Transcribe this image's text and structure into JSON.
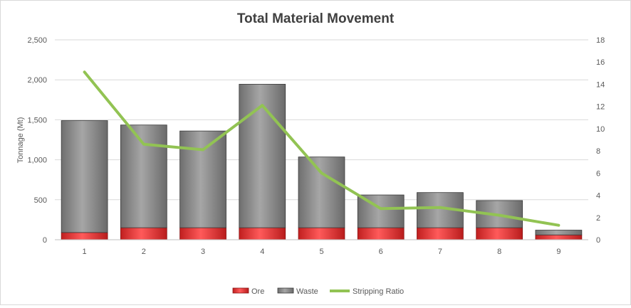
{
  "chart_data": {
    "type": "bar",
    "stacked": true,
    "title": "Total Material Movement",
    "ylabel": "Tonnage (Mt)",
    "y2label": "",
    "xlabel": "",
    "categories": [
      "1",
      "2",
      "3",
      "4",
      "5",
      "6",
      "7",
      "8",
      "9"
    ],
    "ylim": [
      0,
      2500
    ],
    "yticks": [
      0,
      500,
      1000,
      1500,
      2000,
      2500
    ],
    "ytick_labels": [
      "0",
      "500",
      "1,000",
      "1,500",
      "2,000",
      "2,500"
    ],
    "y2lim": [
      0,
      18
    ],
    "y2ticks": [
      0,
      2,
      4,
      6,
      8,
      10,
      12,
      14,
      16,
      18
    ],
    "y2tick_labels": [
      "0",
      "2",
      "4",
      "6",
      "8",
      "10",
      "12",
      "14",
      "16",
      "18"
    ],
    "grid": true,
    "legend_position": "bottom",
    "series": [
      {
        "name": "Ore",
        "kind": "bar",
        "axis": "left",
        "color": "#e02b2b",
        "values": [
          90,
          150,
          150,
          150,
          150,
          150,
          150,
          150,
          60
        ]
      },
      {
        "name": "Waste",
        "kind": "bar",
        "axis": "left",
        "color": "#8c8c8c",
        "values": [
          1400,
          1285,
          1210,
          1795,
          885,
          410,
          440,
          340,
          60
        ]
      },
      {
        "name": "Stripping Ratio",
        "kind": "line",
        "axis": "right",
        "color": "#92c353",
        "values": [
          15.1,
          8.6,
          8.1,
          12.1,
          6.0,
          2.8,
          2.9,
          2.2,
          1.3
        ]
      }
    ]
  }
}
